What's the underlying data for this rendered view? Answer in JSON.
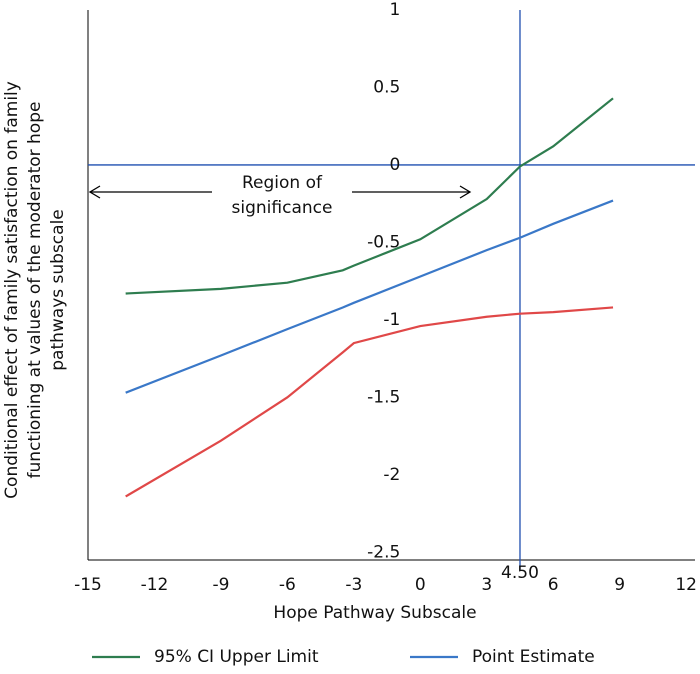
{
  "chart_data": {
    "type": "line",
    "xlabel": "Hope Pathway Subscale",
    "ylabel": [
      "Conditional effect of family satisfaction on family",
      "functioning at values of the moderator hope",
      "pathways subscale"
    ],
    "annotation": [
      "Region of",
      "significance"
    ],
    "x": [
      -13.3,
      -9,
      -6,
      -3.5,
      -3,
      0,
      3,
      4.5,
      6,
      8.7
    ],
    "series": [
      {
        "name": "95% CI Upper Limit",
        "color": "#2e7d4f",
        "values": [
          -0.83,
          -0.8,
          -0.76,
          -0.68,
          -0.65,
          -0.48,
          -0.22,
          -0.01,
          0.12,
          0.43
        ]
      },
      {
        "name": "Point Estimate",
        "color": "#3a78c8",
        "values": [
          -1.47,
          -1.23,
          -1.06,
          -0.92,
          -0.89,
          -0.72,
          -0.55,
          -0.47,
          -0.38,
          -0.23
        ]
      },
      {
        "color": "#e04848",
        "values": [
          -2.14,
          -1.78,
          -1.5,
          -1.21,
          -1.15,
          -1.04,
          -0.98,
          -0.96,
          -0.95,
          -0.92
        ]
      }
    ],
    "xlim": [
      -15,
      12.4
    ],
    "ylim": [
      -2.55,
      1
    ],
    "xticks": [
      -15,
      -12,
      -9,
      -6,
      -3,
      0,
      3,
      {
        "value": 4.5,
        "label": "4.50"
      },
      6,
      9,
      12
    ],
    "yticks": [
      1,
      0.5,
      0,
      -0.5,
      -1,
      -1.5,
      -2,
      -2.5
    ],
    "vline": 4.5,
    "hline": 0,
    "refcolor": "#1f4fb0"
  }
}
